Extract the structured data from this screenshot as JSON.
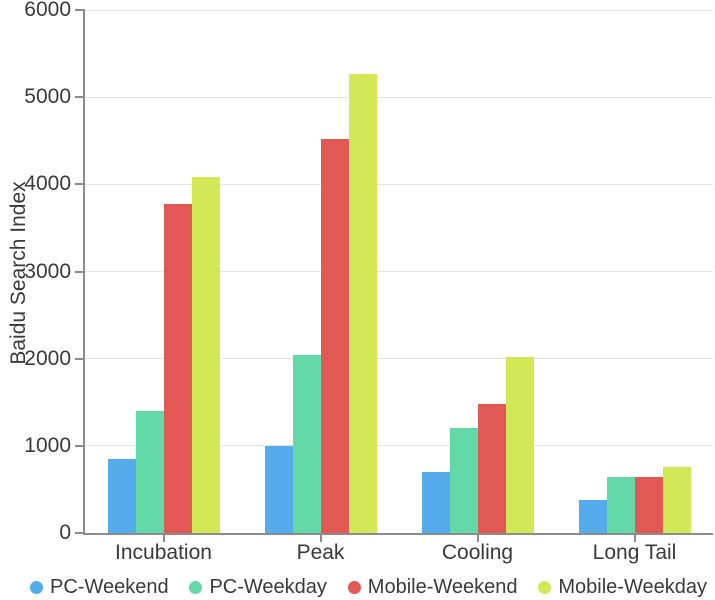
{
  "chart_data": {
    "type": "bar",
    "title": "",
    "ylabel": "Baidu Search Index",
    "xlabel": "",
    "categories": [
      "Incubation",
      "Peak",
      "Cooling",
      "Long Tail"
    ],
    "series": [
      {
        "name": "PC-Weekend",
        "color": "#54ACEC",
        "values": [
          850,
          1000,
          700,
          380
        ]
      },
      {
        "name": "PC-Weekday",
        "color": "#62D9A6",
        "values": [
          1400,
          2040,
          1210,
          640
        ]
      },
      {
        "name": "Mobile-Weekend",
        "color": "#E25854",
        "values": [
          3780,
          4520,
          1480,
          640
        ]
      },
      {
        "name": "Mobile-Weekday",
        "color": "#D2E857",
        "values": [
          4080,
          5270,
          2020,
          760
        ]
      }
    ],
    "ylim": [
      0,
      6000
    ],
    "yticks": [
      0,
      1000,
      2000,
      3000,
      4000,
      5000,
      6000
    ],
    "grid": true,
    "legend_position": "bottom",
    "colors": {
      "axis": "#8c8c8c",
      "grid": "#e5e5e5",
      "text": "#3a3a3a"
    }
  }
}
